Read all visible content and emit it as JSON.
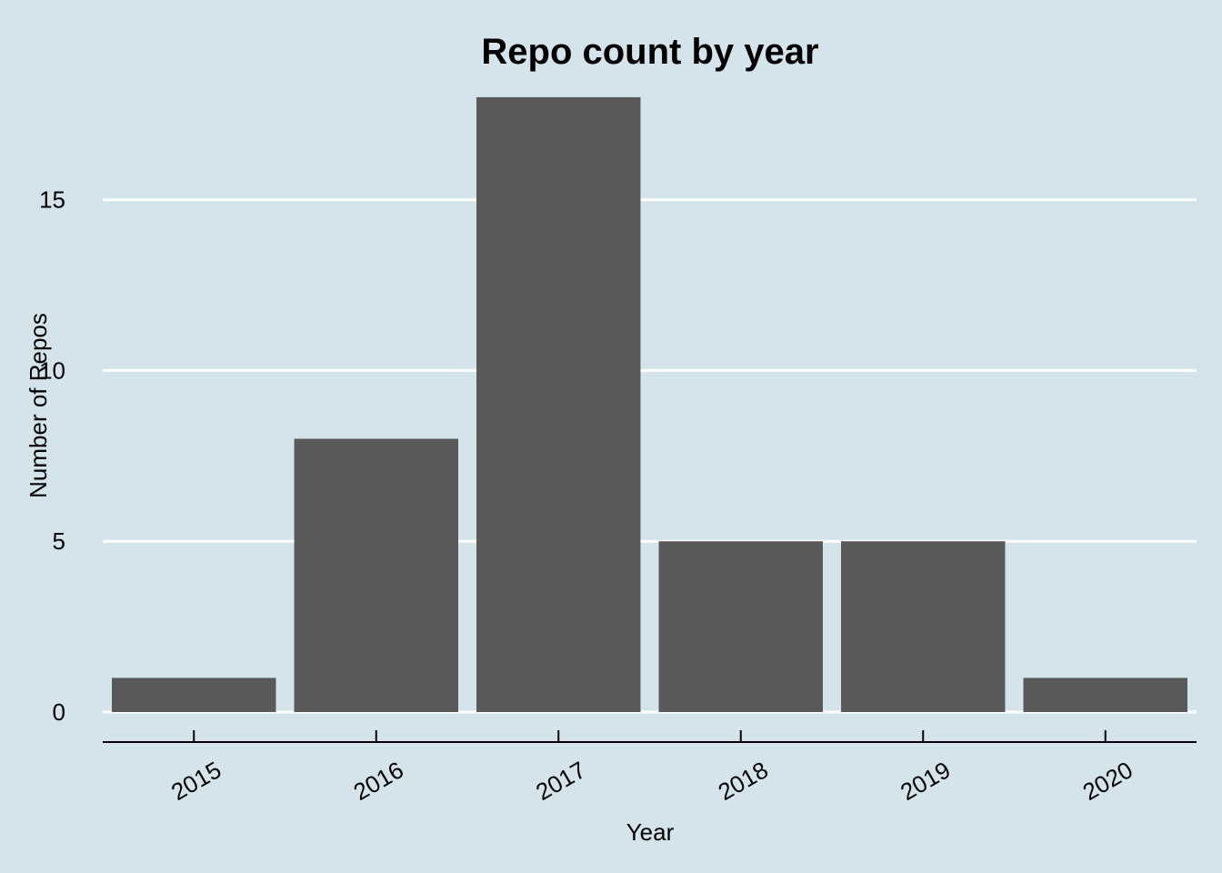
{
  "chart_data": {
    "type": "bar",
    "title": "Repo count by year",
    "xlabel": "Year",
    "ylabel": "Number of Repos",
    "categories": [
      "2015",
      "2016",
      "2017",
      "2018",
      "2019",
      "2020"
    ],
    "values": [
      1,
      8,
      18,
      5,
      5,
      1
    ],
    "ylim": [
      0,
      18
    ],
    "yticks": [
      0,
      5,
      10,
      15
    ],
    "grid": true,
    "legend": "none",
    "colors": {
      "background": "#d5e4eb",
      "bar": "#595959",
      "gridline": "#ffffff",
      "axis": "#000000"
    }
  }
}
